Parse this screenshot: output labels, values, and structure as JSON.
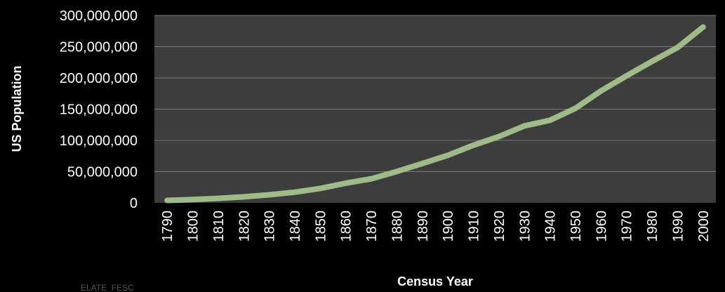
{
  "chart_data": {
    "type": "line",
    "title": "",
    "xlabel": "Census Year",
    "ylabel": "US Population",
    "x": [
      1790,
      1800,
      1810,
      1820,
      1830,
      1840,
      1850,
      1860,
      1870,
      1880,
      1890,
      1900,
      1910,
      1920,
      1930,
      1940,
      1950,
      1960,
      1970,
      1980,
      1990,
      2000
    ],
    "series": [
      {
        "name": "",
        "values": [
          3929214,
          5308483,
          7239881,
          9638453,
          12866020,
          17069453,
          23191876,
          31443321,
          38558371,
          50189209,
          62979766,
          76212168,
          92228496,
          106021537,
          123202624,
          132164569,
          151325798,
          179323175,
          203302031,
          226542199,
          248709873,
          281421906
        ]
      }
    ],
    "ylim": [
      0,
      300000000
    ],
    "yticks": [
      "0",
      "50,000,000",
      "100,000,000",
      "150,000,000",
      "200,000,000",
      "250,000,000",
      "300,000,000"
    ],
    "ytick_values": [
      0,
      50000000,
      100000000,
      150000000,
      200000000,
      250000000,
      300000000
    ],
    "xtick_labels": [
      "1790",
      "1800",
      "1810",
      "1820",
      "1830",
      "1840",
      "1850",
      "1860",
      "1870",
      "1880",
      "1890",
      "1900",
      "1910",
      "1920",
      "1930",
      "1940",
      "1950",
      "1960",
      "1970",
      "1980",
      "1990",
      "2000"
    ],
    "grid": true,
    "legend": "none",
    "colors": {
      "line": "#9fbb87",
      "plot_background": "#3d3d3d",
      "gridline": "#7a7a7a",
      "page_background": "#000000",
      "text": "#ffffff"
    }
  },
  "footer": {
    "credit": "ELATE_FESC"
  }
}
